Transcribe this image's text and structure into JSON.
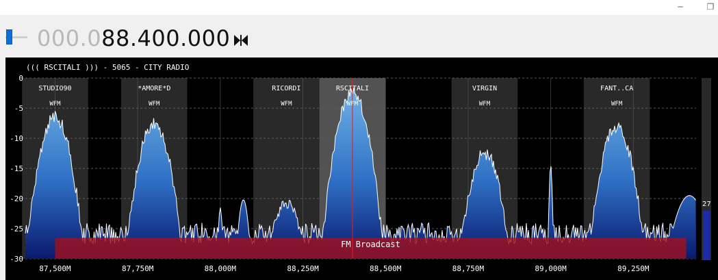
{
  "window": {
    "minimize_icon": "─",
    "restore_icon": "❐"
  },
  "tuner": {
    "frequency_prefix": "000.0",
    "frequency_main": "88.400.000",
    "gain_level": 0.25
  },
  "spectrum": {
    "station_title": "((( RSCITALI ))) - 5065 - CITY RADIO",
    "y_ticks": [
      {
        "label": "0",
        "value": 0
      },
      {
        "label": "-5",
        "value": -5
      },
      {
        "label": "-10",
        "value": -10
      },
      {
        "label": "-15",
        "value": -15
      },
      {
        "label": "-20",
        "value": -20
      },
      {
        "label": "-25",
        "value": -25
      },
      {
        "label": "-30",
        "value": -30
      }
    ],
    "x_ticks": [
      {
        "label": "87,500M",
        "mhz": 87.5
      },
      {
        "label": "87,750M",
        "mhz": 87.75
      },
      {
        "label": "88,000M",
        "mhz": 88.0
      },
      {
        "label": "88,250M",
        "mhz": 88.25
      },
      {
        "label": "88,500M",
        "mhz": 88.5
      },
      {
        "label": "88,750M",
        "mhz": 88.75
      },
      {
        "label": "89,000M",
        "mhz": 89.0
      },
      {
        "label": "89,250M",
        "mhz": 89.25
      }
    ],
    "x_range_mhz": [
      87.41,
      89.44
    ],
    "y_range_db": [
      -30,
      0
    ],
    "tuned_mhz": 88.4,
    "stations": [
      {
        "name": "STUDIO90",
        "mode": "WFM",
        "center_mhz": 87.5,
        "peak_db": -6.5
      },
      {
        "name": "*AMORE*D",
        "mode": "WFM",
        "center_mhz": 87.8,
        "peak_db": -7.5
      },
      {
        "name": "RICORDI",
        "mode": "WFM",
        "center_mhz": 88.2,
        "peak_db": -20.5
      },
      {
        "name": "RSCITALI",
        "mode": "WFM",
        "center_mhz": 88.4,
        "peak_db": -2.5,
        "selected": true
      },
      {
        "name": "VIRGIN",
        "mode": "WFM",
        "center_mhz": 88.8,
        "peak_db": -12.5
      },
      {
        "name": "FANT..CA",
        "mode": "WFM",
        "center_mhz": 89.2,
        "peak_db": -8.0
      }
    ],
    "band": {
      "label": "FM Broadcast",
      "start_mhz": 87.5,
      "end_mhz": 89.41
    },
    "level_meter": {
      "value": "27",
      "fraction": 0.27
    },
    "colors": {
      "band_fill": "#a0101e",
      "station_box": "#3a3a3a",
      "station_box_selected": "#6e6e6e",
      "tuned_line": "#e02020",
      "spectrum_top": "#6fb2e6",
      "spectrum_bottom": "#0a1a6e",
      "grid": "#5a5a5a"
    }
  }
}
